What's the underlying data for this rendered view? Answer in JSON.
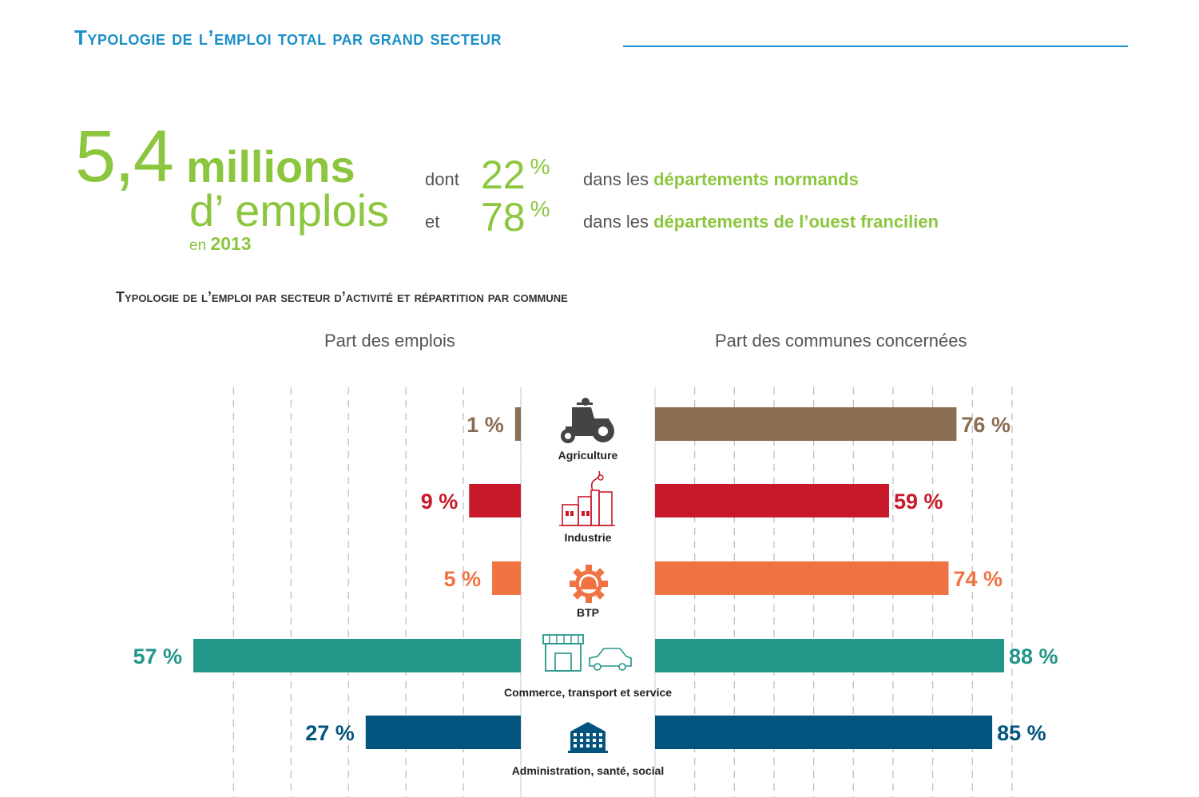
{
  "header": {
    "title": "Typologie de l’emploi total par grand secteur"
  },
  "headline": {
    "big_number": "5,4",
    "unit_line1": "millions",
    "unit_line2": "d’ emplois",
    "year_prefix": "en",
    "year": "2013",
    "rows": [
      {
        "connector": "dont",
        "percent": "22",
        "percent_sign": "%",
        "text_prefix": "dans les",
        "text_highlight": "départements normands"
      },
      {
        "connector": "et",
        "percent": "78",
        "percent_sign": "%",
        "text_prefix": "dans les",
        "text_highlight": "départements de l’ouest francilien"
      }
    ]
  },
  "colors": {
    "title_blue": "#1a8fc9",
    "headline_green": "#8cc63f",
    "Agriculture": "#8a6e53",
    "Industrie": "#c8192a",
    "BTP": "#f07343",
    "Commerce": "#23968a",
    "Administration": "#03557f",
    "grid": "#bbbbbb"
  },
  "chart_data": {
    "type": "bar",
    "title": "Typologie de l’emploi par secteur d’activité et répartition par commune",
    "left_panel_title": "Part des emplois",
    "right_panel_title": "Part des communes concernées",
    "categories": [
      "Agriculture",
      "Industrie",
      "BTP",
      "Commerce, transport et service",
      "Administration, santé, social"
    ],
    "icons": [
      "tractor-icon",
      "factory-icon",
      "gear-helmet-icon",
      "shop-car-icon",
      "building-icon"
    ],
    "series": [
      {
        "name": "Part des emplois",
        "values": [
          1,
          9,
          5,
          57,
          27
        ]
      },
      {
        "name": "Part des communes concernées",
        "values": [
          76,
          59,
          74,
          88,
          85
        ]
      }
    ],
    "value_labels_left": [
      "1 %",
      "9 %",
      "5 %",
      "57 %",
      "27 %"
    ],
    "value_labels_right": [
      "76 %",
      "59 %",
      "74 %",
      "88 %",
      "85 %"
    ],
    "unit": "%",
    "grid": true
  }
}
